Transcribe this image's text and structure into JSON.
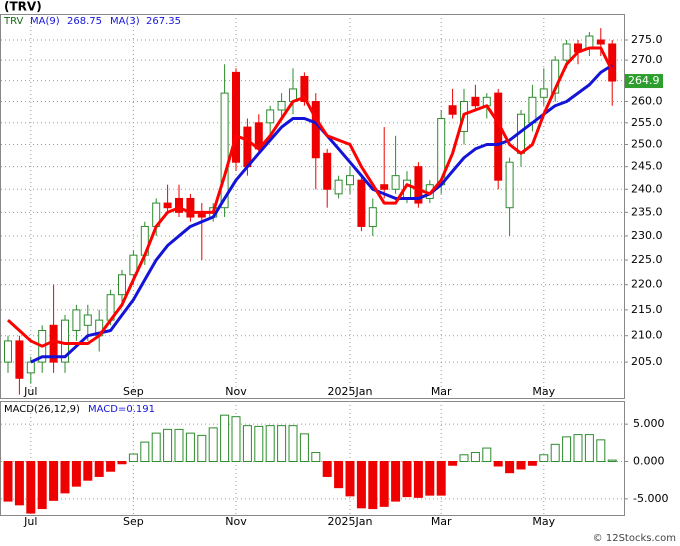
{
  "chart_data": [
    {
      "type": "candlestick",
      "title": "(TRV)",
      "symbol": "TRV",
      "categories": [
        null,
        null,
        "Jul",
        null,
        null,
        null,
        null,
        null,
        null,
        null,
        null,
        "Sep",
        null,
        null,
        null,
        null,
        null,
        null,
        null,
        null,
        "Nov",
        null,
        null,
        null,
        null,
        null,
        null,
        null,
        null,
        null,
        "2025Jan",
        null,
        null,
        null,
        null,
        null,
        null,
        null,
        "Mar",
        null,
        null,
        null,
        null,
        null,
        null,
        null,
        null,
        "May",
        null,
        null,
        null,
        null,
        null,
        null
      ],
      "open": [
        205,
        209,
        203,
        205,
        212,
        205,
        211,
        212,
        210,
        213,
        218,
        222,
        226,
        232,
        237,
        238,
        238,
        235,
        234,
        236,
        267,
        254,
        255,
        255,
        258,
        260,
        266,
        260,
        248,
        239,
        241,
        242,
        232,
        241,
        240,
        238,
        245,
        238,
        241,
        259,
        253,
        261,
        259,
        262,
        236,
        248,
        255,
        261,
        262,
        270,
        274,
        273,
        275,
        274
      ],
      "high": [
        210,
        210,
        206,
        212,
        220,
        214,
        216,
        216,
        215,
        219,
        223,
        227,
        233,
        238,
        241,
        241,
        239,
        237,
        237,
        269,
        268,
        256,
        257,
        259,
        262,
        268,
        267,
        262,
        249,
        243,
        245,
        243,
        238,
        254,
        252,
        244,
        246,
        242,
        258,
        263,
        263,
        264,
        262,
        263,
        247,
        258,
        264,
        268,
        271,
        275,
        275,
        277,
        278,
        275
      ],
      "low": [
        203,
        199,
        201,
        203,
        203,
        203,
        209,
        209,
        207,
        212,
        216,
        220,
        224,
        230,
        235,
        234,
        233,
        225,
        233,
        234,
        244,
        243,
        248,
        252,
        256,
        257,
        259,
        240,
        236,
        238,
        239,
        231,
        230,
        238,
        239,
        237,
        236,
        237,
        239,
        256,
        250,
        258,
        256,
        240,
        230,
        245,
        253,
        259,
        260,
        268,
        269,
        271,
        271,
        259
      ],
      "close": [
        209,
        202,
        205,
        211,
        205,
        213,
        215,
        214,
        213,
        218,
        222,
        226,
        232,
        237,
        236,
        235,
        234,
        234,
        236,
        262,
        246,
        245,
        249,
        258,
        260,
        263,
        260,
        247,
        240,
        242,
        243,
        232,
        236,
        240,
        243,
        242,
        237,
        241,
        256,
        257,
        260,
        259,
        261,
        242,
        246,
        257,
        261,
        263,
        270,
        274,
        272,
        276,
        274,
        264.9
      ],
      "up_color": "#2e8b2e",
      "down_color": "#ee0000",
      "series": [
        {
          "name": "MA(9)",
          "color": "#1414d8",
          "legend_value": 268.75,
          "values": [
            null,
            null,
            205,
            206,
            206,
            206,
            208,
            210,
            210.5,
            211,
            214,
            217,
            221,
            225,
            228,
            230,
            232,
            233,
            234,
            238,
            242,
            245,
            248,
            251,
            254,
            256,
            256,
            255,
            252,
            249,
            246,
            243,
            240,
            239,
            238,
            238,
            238,
            239,
            241,
            244,
            247,
            249,
            250,
            250,
            251,
            253,
            255,
            257,
            259,
            260,
            262,
            264,
            267,
            268.75
          ]
        },
        {
          "name": "MA(3)",
          "color": "#ff0000",
          "legend_value": 267.35,
          "values": [
            213,
            211,
            209,
            208,
            209,
            208.5,
            208.5,
            208.5,
            210,
            213,
            216,
            221,
            226,
            232,
            235,
            236,
            235,
            235,
            235,
            243,
            252,
            251,
            249,
            252,
            256,
            260,
            261,
            256,
            252,
            251,
            250,
            245,
            241,
            237,
            237,
            241,
            240,
            239,
            242,
            248,
            257,
            258,
            259,
            255,
            250,
            248,
            250,
            257,
            263,
            269,
            272,
            273,
            273,
            267.35
          ]
        }
      ],
      "last_price": 264.9,
      "log_scale": true,
      "grid": true,
      "ylim": [
        198.4,
        281.6
      ],
      "yticks": [
        {
          "value": 205,
          "label": "205.0"
        },
        {
          "value": 210,
          "label": "210.0"
        },
        {
          "value": 215,
          "label": "215.0"
        },
        {
          "value": 220,
          "label": "220.0"
        },
        {
          "value": 225,
          "label": "225.0"
        },
        {
          "value": 230,
          "label": "230.0"
        },
        {
          "value": 235,
          "label": "235.0"
        },
        {
          "value": 240,
          "label": "240.0"
        },
        {
          "value": 245,
          "label": "245.0"
        },
        {
          "value": 250,
          "label": "250.0"
        },
        {
          "value": 255,
          "label": "255.0"
        },
        {
          "value": 260,
          "label": "260.0"
        },
        {
          "value": 265,
          "label": "265.0"
        },
        {
          "value": 270,
          "label": "270.0"
        },
        {
          "value": 275,
          "label": "275.0"
        }
      ]
    },
    {
      "type": "bar",
      "title": "MACD(26,12,9)",
      "value_label": "MACD=0.191",
      "categories": [
        null,
        null,
        "Jul",
        null,
        null,
        null,
        null,
        null,
        null,
        null,
        null,
        "Sep",
        null,
        null,
        null,
        null,
        null,
        null,
        null,
        null,
        "Nov",
        null,
        null,
        null,
        null,
        null,
        null,
        null,
        null,
        null,
        "2025Jan",
        null,
        null,
        null,
        null,
        null,
        null,
        null,
        "Mar",
        null,
        null,
        null,
        null,
        null,
        null,
        null,
        null,
        "May",
        null,
        null,
        null,
        null,
        null,
        null
      ],
      "values": [
        -5.3,
        -5.8,
        -6.9,
        -6.3,
        -5.2,
        -4.2,
        -3.3,
        -2.5,
        -2,
        -1.3,
        -0.3,
        1,
        2.6,
        3.8,
        4.3,
        4.3,
        3.8,
        3.5,
        4.5,
        6.2,
        6,
        4.8,
        4.7,
        4.8,
        4.8,
        4.8,
        3.7,
        1.2,
        -2,
        -3.5,
        -4.6,
        -6.2,
        -6.3,
        -6,
        -5.3,
        -4.7,
        -4.8,
        -4.5,
        -4.5,
        -0.5,
        0.9,
        1.2,
        1.8,
        -0.6,
        -1.5,
        -1,
        -0.5,
        0.9,
        2.3,
        3.3,
        3.6,
        3.6,
        2.9,
        0.191
      ],
      "up_color": "#2e8b2e",
      "down_color": "#ee0000",
      "grid": true,
      "ylim": [
        -7.16,
        8.1
      ],
      "yticks": [
        {
          "value": 5,
          "label": "5.000"
        },
        {
          "value": 0,
          "label": "0.000"
        },
        {
          "value": -5,
          "label": "-5.000"
        }
      ]
    }
  ],
  "watermark": "© 12Stocks.com"
}
